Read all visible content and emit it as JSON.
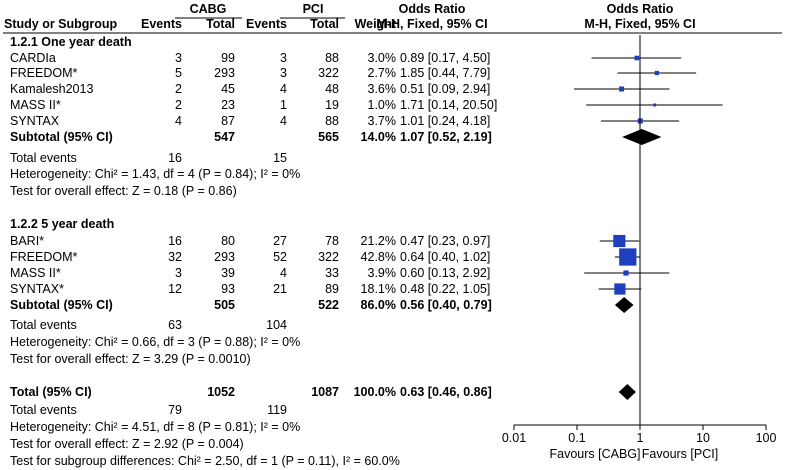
{
  "header": {
    "group1": "CABG",
    "group2": "PCI",
    "col_study": "Study or Subgroup",
    "col_events": "Events",
    "col_total": "Total",
    "col_weight": "Weight",
    "col_or": "Odds Ratio",
    "col_or_method": "M-H, Fixed, 95% CI",
    "plot_title": "Odds Ratio",
    "plot_method": "M-H, Fixed, 95% CI"
  },
  "subgroups": [
    {
      "title": "1.2.1 One year death",
      "studies": [
        {
          "name": "CARDIa",
          "e1": "3",
          "n1": "99",
          "e2": "3",
          "n2": "88",
          "weight": "3.0%",
          "ci": "0.89 [0.17, 4.50]",
          "or": 0.89,
          "lo": 0.17,
          "hi": 4.5,
          "w": 3.0
        },
        {
          "name": "FREEDOM*",
          "e1": "5",
          "n1": "293",
          "e2": "3",
          "n2": "322",
          "weight": "2.7%",
          "ci": "1.85 [0.44, 7.79]",
          "or": 1.85,
          "lo": 0.44,
          "hi": 7.79,
          "w": 2.7
        },
        {
          "name": "Kamalesh2013",
          "e1": "2",
          "n1": "45",
          "e2": "4",
          "n2": "48",
          "weight": "3.6%",
          "ci": "0.51 [0.09, 2.94]",
          "or": 0.51,
          "lo": 0.09,
          "hi": 2.94,
          "w": 3.6
        },
        {
          "name": "MASS II*",
          "e1": "2",
          "n1": "23",
          "e2": "1",
          "n2": "19",
          "weight": "1.0%",
          "ci": "1.71 [0.14, 20.50]",
          "or": 1.71,
          "lo": 0.14,
          "hi": 20.5,
          "w": 1.0
        },
        {
          "name": "SYNTAX",
          "e1": "4",
          "n1": "87",
          "e2": "4",
          "n2": "88",
          "weight": "3.7%",
          "ci": "1.01 [0.24, 4.18]",
          "or": 1.01,
          "lo": 0.24,
          "hi": 4.18,
          "w": 3.7
        }
      ],
      "subtotal": {
        "label": "Subtotal (95% CI)",
        "n1": "547",
        "n2": "565",
        "weight": "14.0%",
        "ci": "1.07 [0.52, 2.19]",
        "or": 1.07,
        "lo": 0.52,
        "hi": 2.19
      },
      "total_events": {
        "label": "Total events",
        "e1": "16",
        "e2": "15"
      },
      "heterogeneity": "Heterogeneity: Chi² = 1.43, df = 4 (P = 0.84); I² = 0%",
      "overall": "Test for overall effect: Z = 0.18 (P = 0.86)"
    },
    {
      "title": "1.2.2 5 year death",
      "studies": [
        {
          "name": "BARI*",
          "e1": "16",
          "n1": "80",
          "e2": "27",
          "n2": "78",
          "weight": "21.2%",
          "ci": "0.47 [0.23, 0.97]",
          "or": 0.47,
          "lo": 0.23,
          "hi": 0.97,
          "w": 21.2
        },
        {
          "name": "FREEDOM*",
          "e1": "32",
          "n1": "293",
          "e2": "52",
          "n2": "322",
          "weight": "42.8%",
          "ci": "0.64 [0.40, 1.02]",
          "or": 0.64,
          "lo": 0.4,
          "hi": 1.02,
          "w": 42.8
        },
        {
          "name": "MASS II*",
          "e1": "3",
          "n1": "39",
          "e2": "4",
          "n2": "33",
          "weight": "3.9%",
          "ci": "0.60 [0.13, 2.92]",
          "or": 0.6,
          "lo": 0.13,
          "hi": 2.92,
          "w": 3.9
        },
        {
          "name": "SYNTAX*",
          "e1": "12",
          "n1": "93",
          "e2": "21",
          "n2": "89",
          "weight": "18.1%",
          "ci": "0.48 [0.22, 1.05]",
          "or": 0.48,
          "lo": 0.22,
          "hi": 1.05,
          "w": 18.1
        }
      ],
      "subtotal": {
        "label": "Subtotal (95% CI)",
        "n1": "505",
        "n2": "522",
        "weight": "86.0%",
        "ci": "0.56 [0.40, 0.79]",
        "or": 0.56,
        "lo": 0.4,
        "hi": 0.79
      },
      "total_events": {
        "label": "Total events",
        "e1": "63",
        "e2": "104"
      },
      "heterogeneity": "Heterogeneity: Chi² = 0.66, df = 3 (P = 0.88); I² = 0%",
      "overall": "Test for overall effect: Z = 3.29 (P = 0.0010)"
    }
  ],
  "total": {
    "label": "Total (95% CI)",
    "n1": "1052",
    "n2": "1087",
    "weight": "100.0%",
    "ci": "0.63 [0.46, 0.86]",
    "or": 0.63,
    "lo": 0.46,
    "hi": 0.86
  },
  "total_events": {
    "label": "Total events",
    "e1": "79",
    "e2": "119"
  },
  "heterogeneity": "Heterogeneity: Chi² = 4.51, df = 8 (P = 0.81); I² = 0%",
  "overall": "Test for overall effect: Z = 2.92 (P = 0.004)",
  "subgroup_diff": "Test for subgroup differences: Chi² = 2.50, df = 1 (P = 0.11), I² = 60.0%",
  "axis": {
    "ticks": [
      {
        "v": 0.01,
        "label": "0.01"
      },
      {
        "v": 0.1,
        "label": "0.1"
      },
      {
        "v": 1,
        "label": "1"
      },
      {
        "v": 10,
        "label": "10"
      },
      {
        "v": 100,
        "label": "100"
      }
    ],
    "favours_left": "Favours [CABG]",
    "favours_right": "Favours [PCI]",
    "scale": "log"
  },
  "chart_data": {
    "type": "forest",
    "scale": "log",
    "xlim": [
      0.01,
      100
    ],
    "reference": 1,
    "series": [
      {
        "name": "1.2.1 One year death",
        "x": [
          "CARDIa",
          "FREEDOM*",
          "Kamalesh2013",
          "MASS II*",
          "SYNTAX"
        ],
        "values": [
          0.89,
          1.85,
          0.51,
          1.71,
          1.01
        ],
        "lower": [
          0.17,
          0.44,
          0.09,
          0.14,
          0.24
        ],
        "upper": [
          4.5,
          7.79,
          2.94,
          20.5,
          4.18
        ]
      },
      {
        "name": "1.2.2 5 year death",
        "x": [
          "BARI*",
          "FREEDOM*",
          "MASS II*",
          "SYNTAX*"
        ],
        "values": [
          0.47,
          0.64,
          0.6,
          0.48
        ],
        "lower": [
          0.23,
          0.4,
          0.13,
          0.22
        ],
        "upper": [
          0.97,
          1.02,
          2.92,
          1.05
        ]
      }
    ],
    "pooled": [
      {
        "name": "Subtotal (95% CI)",
        "value": 1.07,
        "lower": 0.52,
        "upper": 2.19
      },
      {
        "name": "Subtotal (95% CI)",
        "value": 0.56,
        "lower": 0.4,
        "upper": 0.79
      },
      {
        "name": "Total (95% CI)",
        "value": 0.63,
        "lower": 0.46,
        "upper": 0.86
      }
    ]
  },
  "colors": {
    "marker": "#1f3fbf",
    "line": "#000000"
  }
}
